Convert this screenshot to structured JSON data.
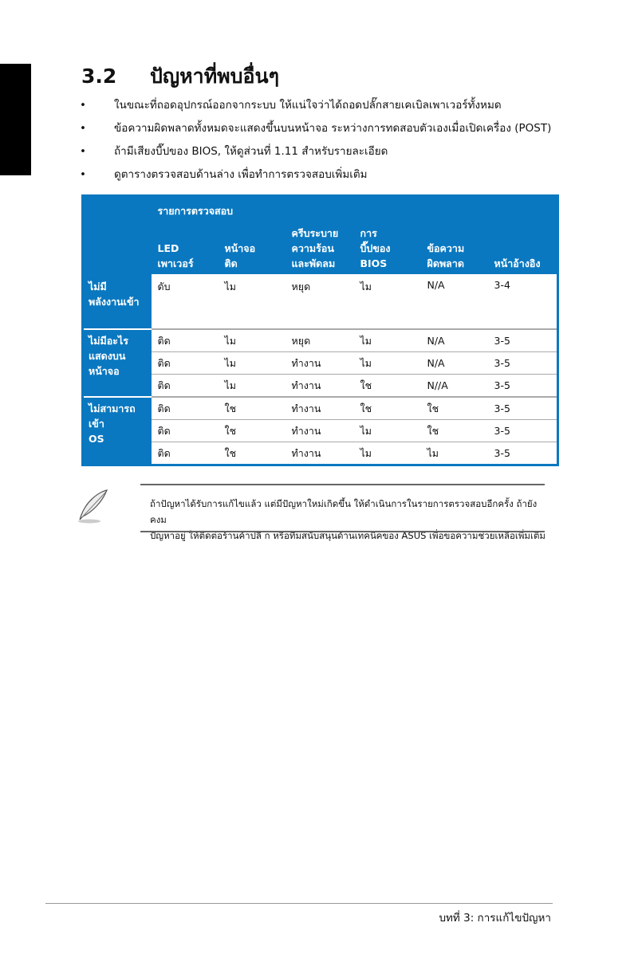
{
  "section": {
    "number": "3.2",
    "title": "ปัญหาที่พบอื่นๆ"
  },
  "bullets": [
    "ในขณะที่ถอดอุปกรณ์ออกจากระบบ ให้แน่ใจว่าได้ถอดปลั๊กสายเคเบิลเพาเวอร์ทั้งหมด",
    "ข้อความผิดพลาดทั้งหมดจะแสดงขึ้นบนหน้าจอ ระหว่างการทดสอบตัวเองเมื่อเปิดเครื่อง (POST)",
    "ถ้ามีเสียงบี๊ปของ BIOS, ให้ดูส่วนที่ 1.11 สำหรับรายละเอียด",
    "ดูตารางตรวจสอบด้านล่าง เพื่อทำการตรวจสอบเพิ่มเติม"
  ],
  "table": {
    "group_header": "รายการตรวจสอบ",
    "columns": [
      "LED เพาเวอร์",
      "หน้าจอ ติด",
      "ครีบระบาย ความร้อน และพัดลม",
      "การ บี๊ปของ BIOS",
      "ข้อความ ผิดพลาด",
      "หน้าอ้างอิง"
    ],
    "categories": [
      {
        "label": "ไม่มี พลังงานเข้า",
        "rows": [
          [
            "ดับ",
            "ไม",
            "หยุด",
            "ไม",
            "N/A",
            "3-4"
          ]
        ]
      },
      {
        "label": "ไม่มีอะไร แสดงบน หน้าจอ",
        "rows": [
          [
            "ติด",
            "ไม",
            "หยุด",
            "ไม",
            "N/A",
            "3-5"
          ],
          [
            "ติด",
            "ไม",
            "ทำงาน",
            "ไม",
            "N/A",
            "3-5"
          ],
          [
            "ติด",
            "ไม",
            "ทำงาน",
            "ใช",
            "N//A",
            "3-5"
          ]
        ]
      },
      {
        "label": "ไม่สามารถ เข้า OS",
        "rows": [
          [
            "ติด",
            "ใช",
            "ทำงาน",
            "ใช",
            "ใช",
            "3-5"
          ],
          [
            "ติด",
            "ใช",
            "ทำงาน",
            "ไม",
            "ใช",
            "3-5"
          ],
          [
            "ติด",
            "ใช",
            "ทำงาน",
            "ไม",
            "ไม",
            "3-5"
          ]
        ]
      }
    ]
  },
  "note": {
    "icon": "feather-pen-icon",
    "lines": [
      "ถ้าปัญหาได้รับการแก้ไขแล้ว แต่มีปัญหาใหม่เกิดขึ้น ให้ดำเนินการในรายการตรวจสอบอีกครั้ง ถ้ายังคงม",
      "ปัญหาอยู่ ให้ติดต่อร้านค้าปลี ก หรือทีมสนับสนุนด้านเทคนิคของ ASUS เพื่อขอความช่วยเหลือเพิ่มเติม"
    ]
  },
  "footer": {
    "chapter": "บทที่ 3: การแก้ไขปัญหา"
  },
  "colors": {
    "table_blue": "#0a78c0",
    "side_tab": "#000000"
  }
}
